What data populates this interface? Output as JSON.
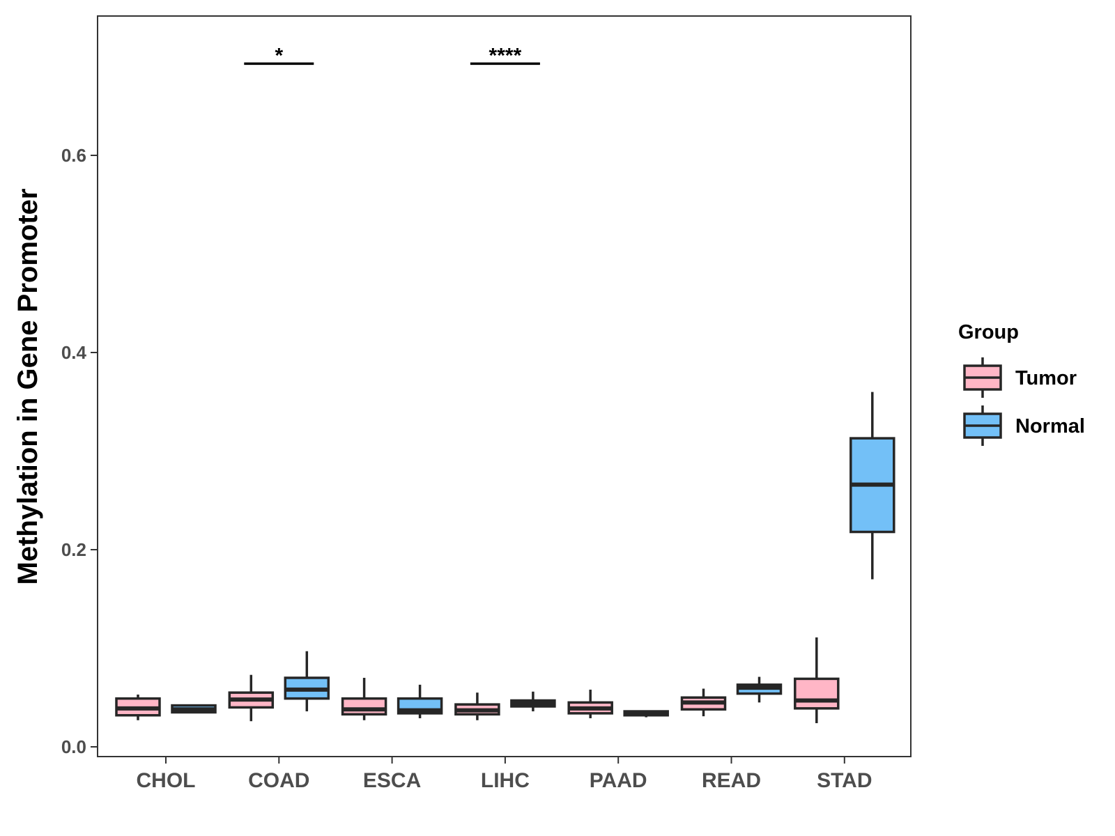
{
  "chart_data": {
    "type": "boxplot",
    "title": "",
    "xlabel": "",
    "ylabel": "Methylation in Gene Promoter",
    "ylim": [
      -0.01,
      0.74
    ],
    "yticks": [
      0.0,
      0.2,
      0.4,
      0.6
    ],
    "ytick_labels": [
      "0.0",
      "0.2",
      "0.4",
      "0.6"
    ],
    "categories": [
      "CHOL",
      "COAD",
      "ESCA",
      "LIHC",
      "PAAD",
      "READ",
      "STAD"
    ],
    "grid": false,
    "legend": {
      "title": "Group",
      "position": "right",
      "entries": [
        {
          "name": "Tumor",
          "color": "#ffb6c6"
        },
        {
          "name": "Normal",
          "color": "#73c0f7"
        }
      ]
    },
    "series": [
      {
        "name": "Tumor",
        "color": "#ffb6c6",
        "boxes": [
          {
            "category": "CHOL",
            "min": 0.027,
            "q1": 0.032,
            "median": 0.039,
            "q3": 0.049,
            "max": 0.053
          },
          {
            "category": "COAD",
            "min": 0.026,
            "q1": 0.04,
            "median": 0.048,
            "q3": 0.055,
            "max": 0.073
          },
          {
            "category": "ESCA",
            "min": 0.027,
            "q1": 0.033,
            "median": 0.038,
            "q3": 0.049,
            "max": 0.07
          },
          {
            "category": "LIHC",
            "min": 0.027,
            "q1": 0.033,
            "median": 0.037,
            "q3": 0.043,
            "max": 0.055
          },
          {
            "category": "PAAD",
            "min": 0.029,
            "q1": 0.034,
            "median": 0.039,
            "q3": 0.045,
            "max": 0.058
          },
          {
            "category": "READ",
            "min": 0.031,
            "q1": 0.038,
            "median": 0.045,
            "q3": 0.05,
            "max": 0.059
          },
          {
            "category": "STAD",
            "min": 0.024,
            "q1": 0.039,
            "median": 0.047,
            "q3": 0.069,
            "max": 0.111
          }
        ]
      },
      {
        "name": "Normal",
        "color": "#73c0f7",
        "boxes": [
          {
            "category": "CHOL",
            "min": 0.035,
            "q1": 0.035,
            "median": 0.038,
            "q3": 0.042,
            "max": 0.043
          },
          {
            "category": "COAD",
            "min": 0.036,
            "q1": 0.049,
            "median": 0.058,
            "q3": 0.07,
            "max": 0.097
          },
          {
            "category": "ESCA",
            "min": 0.029,
            "q1": 0.034,
            "median": 0.037,
            "q3": 0.049,
            "max": 0.063
          },
          {
            "category": "LIHC",
            "min": 0.036,
            "q1": 0.041,
            "median": 0.044,
            "q3": 0.047,
            "max": 0.056
          },
          {
            "category": "PAAD",
            "min": 0.03,
            "q1": 0.032,
            "median": 0.034,
            "q3": 0.036,
            "max": 0.037
          },
          {
            "category": "READ",
            "min": 0.045,
            "q1": 0.054,
            "median": 0.06,
            "q3": 0.063,
            "max": 0.071
          },
          {
            "category": "STAD",
            "min": 0.17,
            "q1": 0.218,
            "median": 0.266,
            "q3": 0.313,
            "max": 0.36
          }
        ]
      }
    ],
    "annotations": [
      {
        "category": "COAD",
        "label": "*",
        "y": 0.693
      },
      {
        "category": "LIHC",
        "label": "****",
        "y": 0.693
      }
    ]
  }
}
